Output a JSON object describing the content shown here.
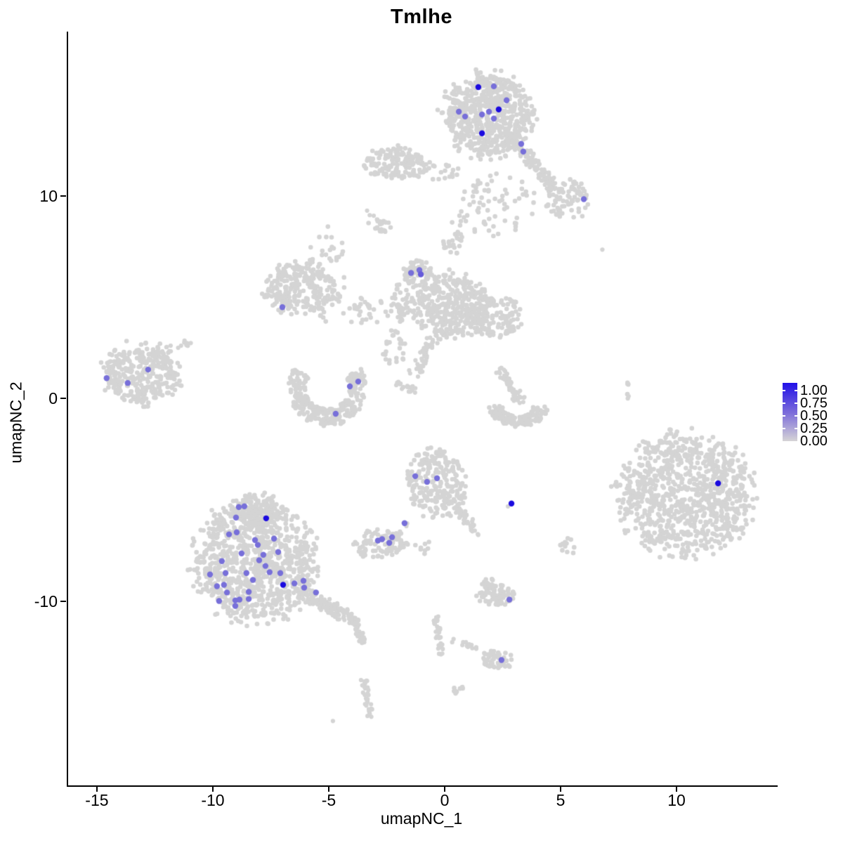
{
  "chart_data": {
    "type": "scatter",
    "subtype": "umap-feature-plot",
    "title": "Tmlhe",
    "xlabel": "umapNC_1",
    "ylabel": "umapNC_2",
    "xlim": [
      -16.3,
      14.3
    ],
    "ylim": [
      -19.1,
      18.1
    ],
    "x_ticks": [
      -15,
      -10,
      -5,
      0,
      5,
      10
    ],
    "y_ticks": [
      -10,
      0,
      10
    ],
    "grid": false,
    "colors": {
      "background_points": "#D4D4D4",
      "expression_low": "#D3D3D3",
      "expression_high": "#1B0ADF",
      "expression_mid": "#776DDA",
      "axis": "#000000"
    },
    "legend": {
      "position": "right",
      "tick_labels": [
        "1.00",
        "0.75",
        "0.50",
        "0.25",
        "0.00"
      ],
      "gradient_top": "#2110E8",
      "gradient_mid": "#7A6ADA",
      "gradient_bottom": "#D6D4D6"
    },
    "background_clusters": [
      [
        1.85,
        14.0,
        1.95,
        2.1,
        650
      ],
      [
        5.3,
        9.8,
        0.9,
        1.0,
        70
      ],
      [
        2.1,
        9.6,
        1.9,
        1.6,
        70
      ],
      [
        -2.1,
        11.6,
        1.4,
        0.8,
        140
      ],
      [
        -0.2,
        11.2,
        1.1,
        0.4,
        25
      ],
      [
        -6.2,
        5.4,
        1.6,
        1.3,
        230
      ],
      [
        -5.1,
        6.0,
        0.9,
        2.3,
        60
      ],
      [
        -1.2,
        6.15,
        0.7,
        0.65,
        70
      ],
      [
        0.25,
        4.6,
        1.7,
        1.6,
        380
      ],
      [
        2.2,
        4.1,
        1.25,
        1.05,
        130
      ],
      [
        -1.9,
        4.7,
        0.5,
        1.0,
        40
      ],
      [
        -13.1,
        1.2,
        1.7,
        1.55,
        320
      ],
      [
        10.4,
        -4.8,
        2.95,
        3.1,
        950
      ],
      [
        -8.2,
        -8.1,
        2.7,
        3.0,
        950
      ],
      [
        -8.1,
        -5.6,
        1.1,
        1.0,
        120
      ],
      [
        -0.36,
        -4.1,
        1.3,
        1.7,
        230
      ],
      [
        -2.8,
        -7.2,
        1.15,
        0.75,
        90
      ],
      [
        2.2,
        -9.7,
        0.85,
        0.55,
        70
      ],
      [
        2.2,
        -12.9,
        0.7,
        0.5,
        50
      ],
      [
        -2.8,
        8.55,
        0.5,
        0.5,
        12
      ],
      [
        5.3,
        -7.3,
        0.35,
        0.45,
        12
      ],
      [
        0.55,
        -14.3,
        0.25,
        0.3,
        8
      ],
      [
        -3.3,
        4.3,
        1.0,
        0.8,
        30
      ],
      [
        0.3,
        7.9,
        0.5,
        1.0,
        25
      ],
      [
        -2.2,
        2.5,
        0.5,
        0.9,
        25
      ],
      [
        1.9,
        -9.1,
        0.3,
        0.3,
        10
      ],
      [
        -1.0,
        -7.3,
        0.5,
        0.4,
        8
      ]
    ],
    "background_arcs": [
      [
        -5.06,
        0.52,
        1.67,
        1.9,
        150,
        390,
        0.45,
        300
      ],
      [
        3.18,
        -0.38,
        1.27,
        1.04,
        180,
        360,
        0.5,
        130
      ]
    ],
    "background_streams": [
      [
        3.1,
        12.5,
        5.0,
        10.05,
        0.5,
        110
      ],
      [
        -0.4,
        3.0,
        -1.3,
        1.3,
        0.5,
        55
      ],
      [
        -2.1,
        0.76,
        -1.2,
        0.35,
        0.3,
        20
      ],
      [
        -12.2,
        2.3,
        -11.0,
        2.77,
        0.3,
        18
      ],
      [
        2.42,
        1.35,
        3.33,
        -0.17,
        0.45,
        60
      ],
      [
        -6.1,
        -9.6,
        -3.85,
        -11.0,
        0.6,
        160
      ],
      [
        -3.85,
        -11.0,
        -3.5,
        -12.2,
        0.3,
        30
      ],
      [
        0.5,
        -5.3,
        1.45,
        -6.7,
        0.35,
        45
      ],
      [
        -2.33,
        -7.02,
        -1.42,
        -5.99,
        0.25,
        12
      ],
      [
        0.24,
        -11.9,
        1.6,
        -12.4,
        0.2,
        14
      ],
      [
        -0.42,
        -10.7,
        -0.12,
        -12.6,
        0.25,
        40
      ],
      [
        -3.5,
        -13.8,
        -3.2,
        -15.7,
        0.25,
        35
      ],
      [
        7.9,
        0.0,
        7.95,
        0.9,
        0.15,
        8
      ],
      [
        -3.45,
        9.7,
        -2.65,
        8.2,
        0.3,
        10
      ]
    ],
    "background_singles": [
      [
        6.8,
        7.34
      ],
      [
        -4.82,
        -15.92
      ],
      [
        2.73,
        -5.33
      ]
    ],
    "expressing_points": [
      [
        1.45,
        15.36,
        1.0
      ],
      [
        2.12,
        15.4,
        0.5
      ],
      [
        2.67,
        14.71,
        0.5
      ],
      [
        2.33,
        14.26,
        1.0
      ],
      [
        0.61,
        14.15,
        0.5
      ],
      [
        0.88,
        13.91,
        0.5
      ],
      [
        1.61,
        14.01,
        0.5
      ],
      [
        1.91,
        14.15,
        0.5
      ],
      [
        2.12,
        13.81,
        0.5
      ],
      [
        1.61,
        13.08,
        1.0
      ],
      [
        3.3,
        12.56,
        0.5
      ],
      [
        3.39,
        12.18,
        0.5
      ],
      [
        6.0,
        9.83,
        0.5
      ],
      [
        -1.45,
        6.19,
        0.5
      ],
      [
        -1.09,
        6.33,
        0.5
      ],
      [
        -1.03,
        6.12,
        0.6
      ],
      [
        -7.0,
        4.5,
        0.5
      ],
      [
        -14.58,
        1.0,
        0.5
      ],
      [
        -13.67,
        0.76,
        0.5
      ],
      [
        -12.79,
        1.42,
        0.5
      ],
      [
        -3.73,
        0.83,
        0.5
      ],
      [
        -4.09,
        0.59,
        0.5
      ],
      [
        -4.7,
        -0.76,
        0.5
      ],
      [
        11.79,
        -4.19,
        1.0
      ],
      [
        -1.27,
        -3.84,
        0.5
      ],
      [
        -0.76,
        -4.12,
        0.5
      ],
      [
        -0.33,
        -3.94,
        0.5
      ],
      [
        2.88,
        -5.19,
        1.0
      ],
      [
        -1.73,
        -6.16,
        0.5
      ],
      [
        -2.88,
        -7.02,
        0.5
      ],
      [
        -2.7,
        -6.95,
        0.5
      ],
      [
        -2.39,
        -7.13,
        0.5
      ],
      [
        -2.27,
        -6.85,
        0.5
      ],
      [
        2.79,
        -9.93,
        0.5
      ],
      [
        2.45,
        -12.91,
        0.5
      ],
      [
        -8.88,
        -5.36,
        0.5
      ],
      [
        -8.64,
        -5.33,
        0.5
      ],
      [
        -7.7,
        -5.92,
        1.0
      ],
      [
        -9.0,
        -5.88,
        0.5
      ],
      [
        -9.3,
        -6.71,
        0.5
      ],
      [
        -8.97,
        -6.61,
        0.5
      ],
      [
        -8.18,
        -6.99,
        0.5
      ],
      [
        -8.06,
        -7.23,
        0.5
      ],
      [
        -7.82,
        -7.72,
        0.5
      ],
      [
        -8.0,
        -7.99,
        0.5
      ],
      [
        -8.76,
        -7.65,
        0.5
      ],
      [
        -9.61,
        -8.03,
        0.5
      ],
      [
        -9.45,
        -8.62,
        0.5
      ],
      [
        -10.12,
        -8.69,
        0.5
      ],
      [
        -9.82,
        -9.27,
        0.5
      ],
      [
        -9.52,
        -9.2,
        0.5
      ],
      [
        -9.39,
        -9.58,
        0.5
      ],
      [
        -9.73,
        -10.0,
        0.5
      ],
      [
        -9.03,
        -9.97,
        0.5
      ],
      [
        -8.85,
        -9.93,
        0.5
      ],
      [
        -9.03,
        -10.24,
        0.5
      ],
      [
        -8.55,
        -8.62,
        0.5
      ],
      [
        -8.27,
        -8.96,
        0.5
      ],
      [
        -8.45,
        -9.55,
        0.5
      ],
      [
        -8.45,
        -9.9,
        0.5
      ],
      [
        -7.73,
        -8.27,
        0.5
      ],
      [
        -7.55,
        -8.58,
        0.5
      ],
      [
        -7.09,
        -8.62,
        0.5
      ],
      [
        -7.36,
        -6.92,
        0.5
      ],
      [
        -7.18,
        -7.58,
        0.5
      ],
      [
        -6.97,
        -9.2,
        1.0
      ],
      [
        -6.48,
        -9.13,
        0.5
      ],
      [
        -6.09,
        -9.0,
        0.5
      ],
      [
        -6.06,
        -9.34,
        0.5
      ],
      [
        -5.55,
        -9.58,
        0.5
      ]
    ]
  }
}
